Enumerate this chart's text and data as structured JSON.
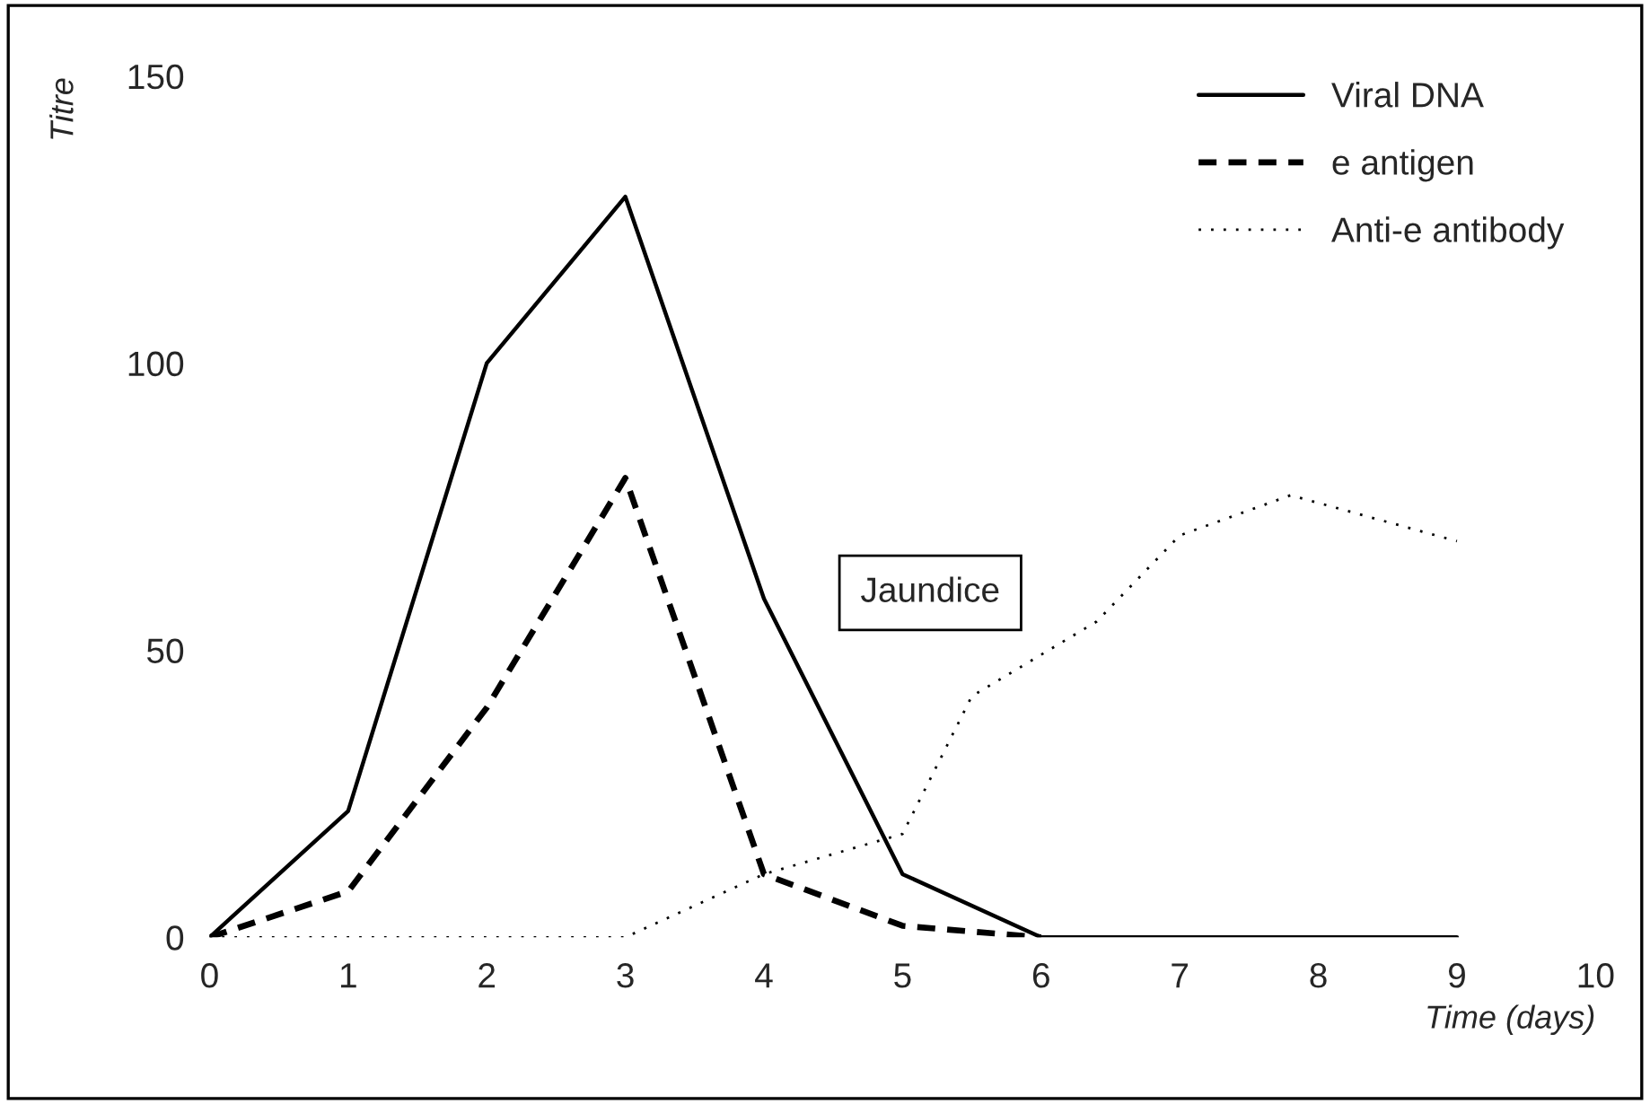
{
  "chart_data": {
    "type": "line",
    "xlabel": "Time (days)",
    "ylabel": "Titre",
    "xlim": [
      0,
      10
    ],
    "xticks": [
      0,
      1,
      2,
      3,
      4,
      5,
      6,
      7,
      8,
      9,
      10
    ],
    "ylim": [
      0,
      150
    ],
    "yticks": [
      0,
      50,
      100,
      150
    ],
    "grid": false,
    "legend": "top right",
    "marker": "none",
    "series": [
      {
        "name": "Viral DNA",
        "color": "#000000",
        "line_style": "solid",
        "x": [
          0,
          1,
          2,
          3,
          4,
          5,
          6,
          7,
          8,
          9
        ],
        "values": [
          0,
          22,
          100,
          129,
          59,
          11,
          0,
          0,
          0,
          0
        ]
      },
      {
        "name": "e antigen",
        "color": "#000000",
        "line_style": "dashed",
        "x": [
          0,
          1,
          2,
          3,
          4,
          5,
          6
        ],
        "values": [
          0,
          8,
          40,
          80,
          11,
          2,
          0
        ]
      },
      {
        "name": "Anti-e antibody",
        "color": "#000000",
        "line_style": "dotted",
        "x": [
          0,
          1,
          2,
          3,
          4,
          5,
          5.5,
          6.4,
          7,
          7.8,
          9
        ],
        "values": [
          0,
          0,
          0,
          0,
          11,
          18,
          42,
          55,
          70,
          77,
          69
        ]
      }
    ],
    "annotations": [
      "Jaundice"
    ]
  }
}
